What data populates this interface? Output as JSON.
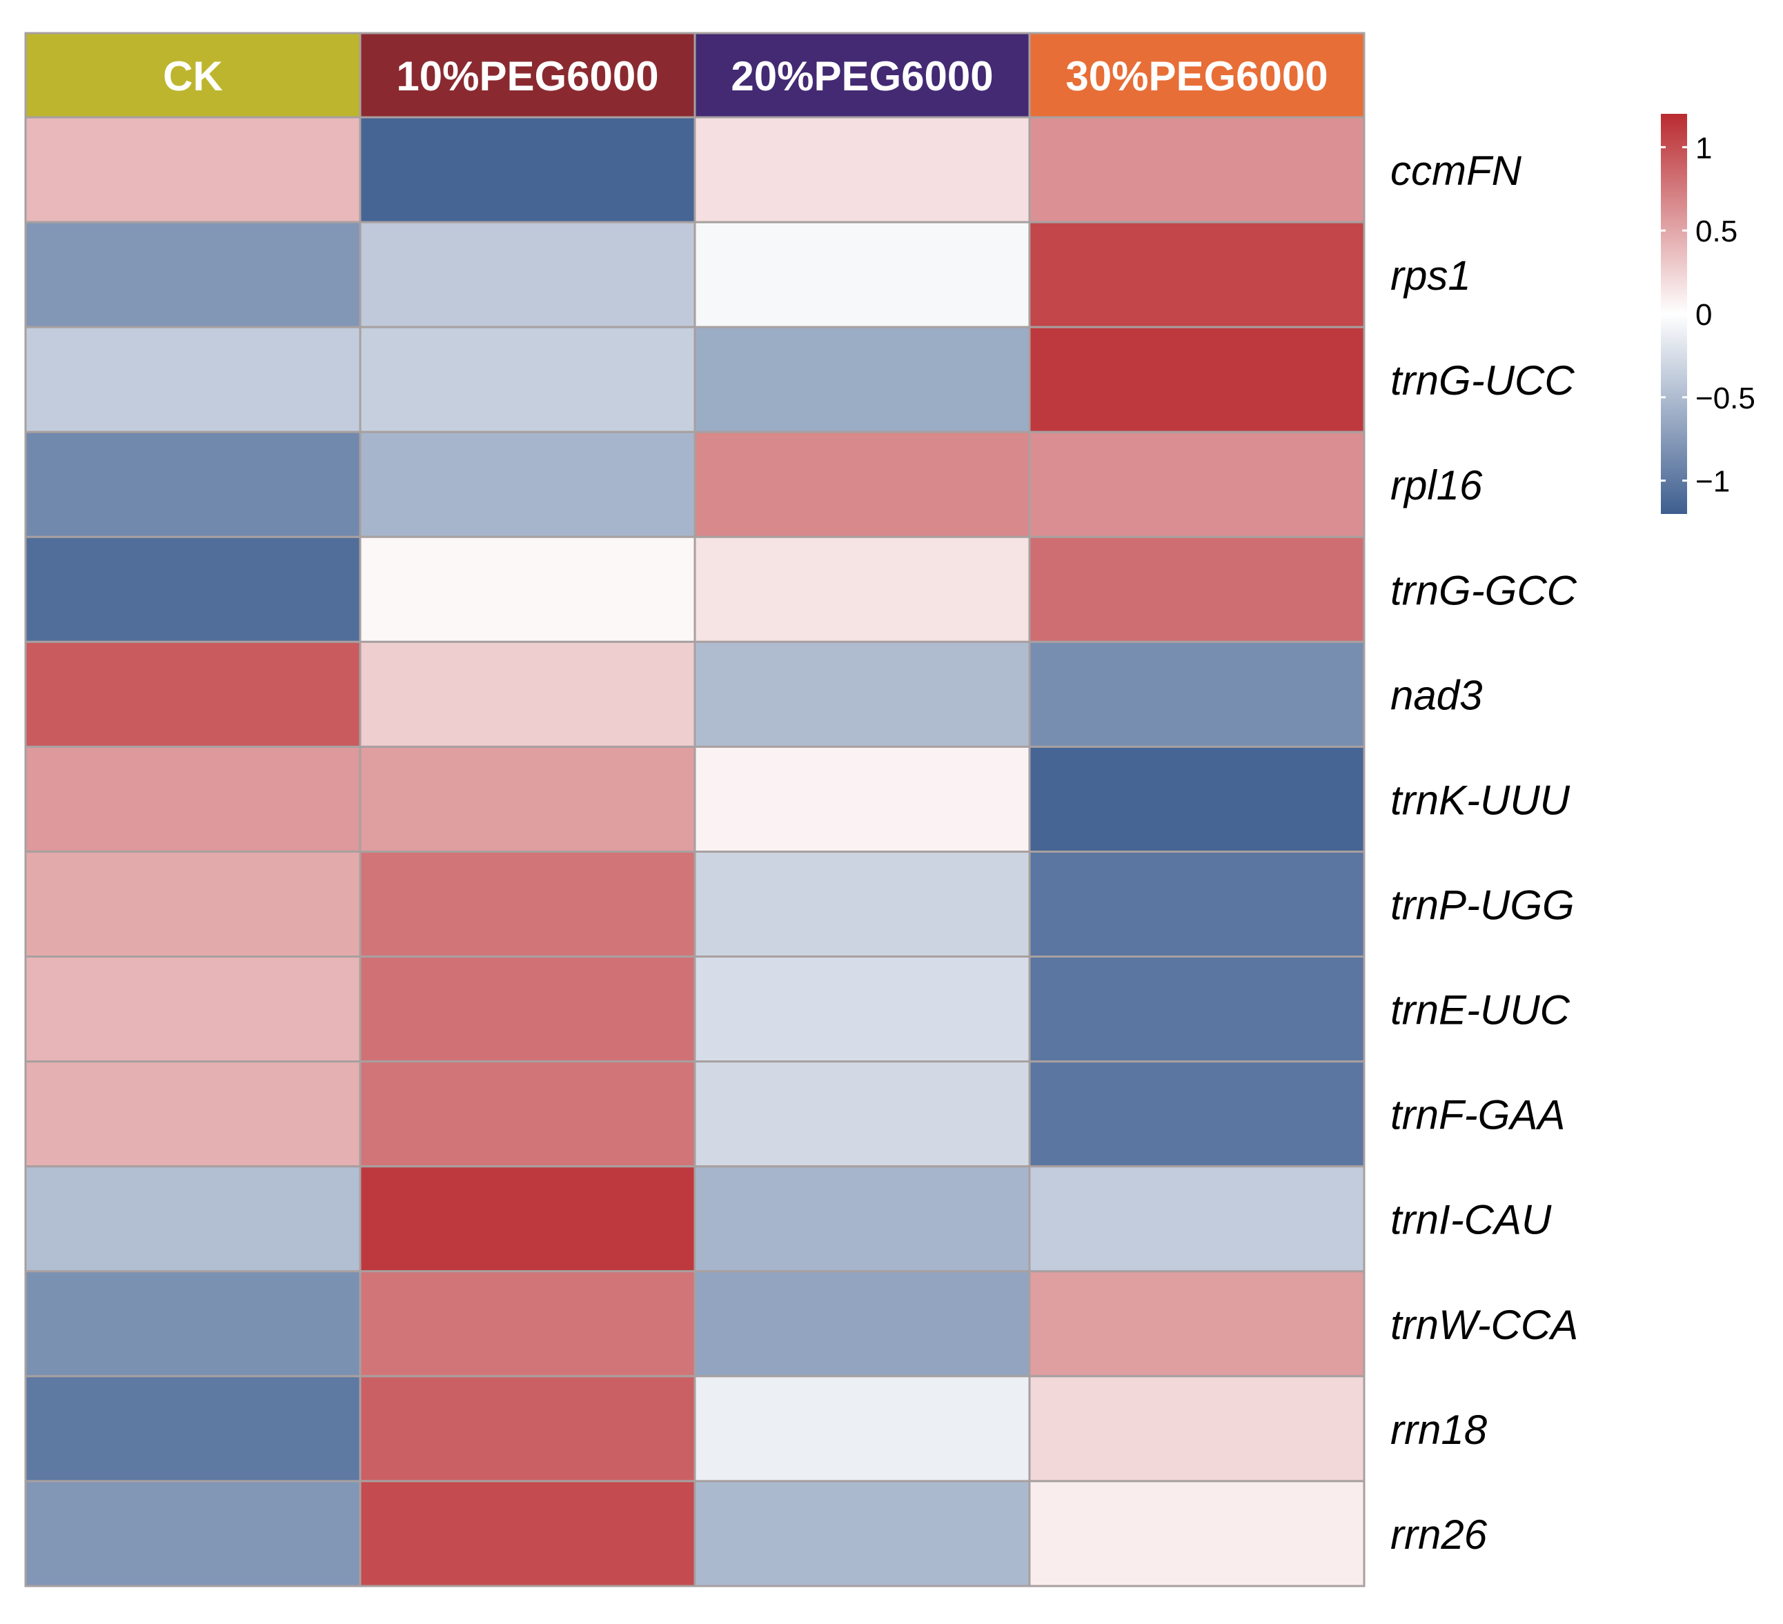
{
  "chart_data": {
    "type": "heatmap",
    "columns": [
      {
        "name": "CK",
        "color": "#BDB52E"
      },
      {
        "name": "10%PEG6000",
        "color": "#8A2A30"
      },
      {
        "name": "20%PEG6000",
        "color": "#432A73"
      },
      {
        "name": "30%PEG6000",
        "color": "#E76E37"
      }
    ],
    "rows": [
      "ccmFN",
      "rps1",
      "trnG-UCC",
      "rpl16",
      "trnG-GCC",
      "nad3",
      "trnK-UUU",
      "trnP-UGG",
      "trnE-UUC",
      "trnF-GAA",
      "trnI-CAU",
      "trnW-CCA",
      "rrn18",
      "rrn26"
    ],
    "values": [
      [
        0.4,
        -1.15,
        0.18,
        0.62
      ],
      [
        -0.78,
        -0.4,
        -0.05,
        1.05
      ],
      [
        -0.38,
        -0.36,
        -0.62,
        1.12
      ],
      [
        -0.88,
        -0.55,
        0.67,
        0.64
      ],
      [
        -1.08,
        0.04,
        0.16,
        0.82
      ],
      [
        0.93,
        0.28,
        -0.5,
        -0.84
      ],
      [
        0.58,
        0.55,
        0.07,
        -1.15
      ],
      [
        0.48,
        0.78,
        -0.32,
        -1.02
      ],
      [
        0.42,
        0.8,
        -0.25,
        -1.02
      ],
      [
        0.45,
        0.78,
        -0.28,
        -1.02
      ],
      [
        -0.48,
        1.12,
        -0.55,
        -0.38
      ],
      [
        -0.82,
        0.78,
        -0.68,
        0.55
      ],
      [
        -1.0,
        0.9,
        -0.12,
        0.22
      ],
      [
        -0.78,
        1.02,
        -0.52,
        0.1
      ]
    ],
    "color_scale": {
      "min": -1.2,
      "max": 1.2,
      "low_color": "#3E5E8F",
      "mid_color": "#FFFFFF",
      "high_color": "#B92B30",
      "ticks": [
        1,
        0.5,
        0,
        -0.5,
        -1
      ],
      "tick_labels": [
        "1",
        "0.5",
        "0",
        "−0.5",
        "−1"
      ]
    },
    "cell_border_color": "#A8A0A0",
    "legend_position": "right"
  }
}
